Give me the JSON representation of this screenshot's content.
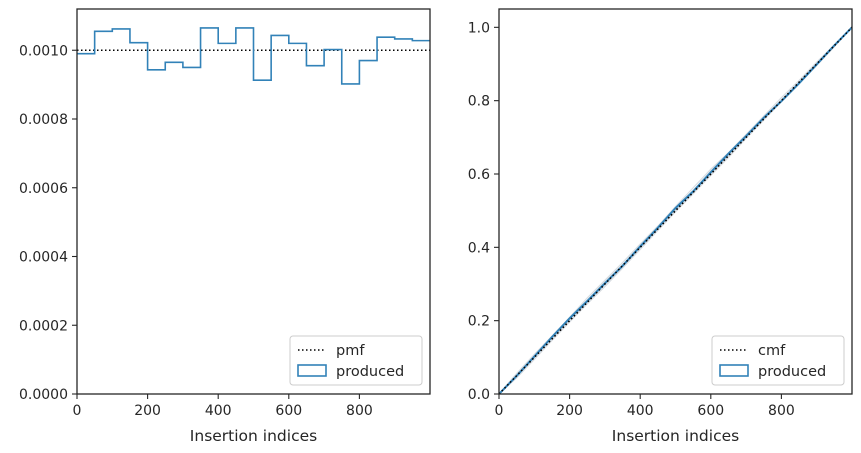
{
  "chart_data": [
    {
      "type": "histogram-step",
      "xlabel": "Insertion indices",
      "ylabel": "",
      "xlim": [
        0,
        1000
      ],
      "ylim": [
        0,
        0.00112
      ],
      "xticks": [
        0,
        200,
        400,
        600,
        800
      ],
      "yticks": [
        0.0,
        0.0002,
        0.0004,
        0.0006,
        0.0008,
        0.001
      ],
      "xtick_labels": [
        "0",
        "200",
        "400",
        "600",
        "800"
      ],
      "ytick_labels": [
        "0.0000",
        "0.0002",
        "0.0004",
        "0.0006",
        "0.0008",
        "0.0010"
      ],
      "grid": false,
      "legend_position": "bottom-right",
      "legend": [
        {
          "label": "pmf",
          "style": "dotted-line",
          "color": "#000000"
        },
        {
          "label": "produced",
          "style": "box",
          "color": "#3282b8"
        }
      ],
      "series": [
        {
          "name": "pmf",
          "kind": "hline",
          "y": 0.001,
          "color": "#000000"
        },
        {
          "name": "produced",
          "kind": "step",
          "color": "#3282b8",
          "bin_edges": [
            0,
            50,
            100,
            150,
            200,
            250,
            300,
            350,
            400,
            450,
            500,
            550,
            600,
            650,
            700,
            750,
            800,
            850,
            900,
            950,
            1000
          ],
          "values": [
            0.00099,
            0.001055,
            0.001062,
            0.001022,
            0.000943,
            0.000965,
            0.00095,
            0.001065,
            0.00102,
            0.001065,
            0.000913,
            0.001043,
            0.00102,
            0.000955,
            0.001002,
            0.000902,
            0.00097,
            0.001038,
            0.001033,
            0.001028
          ]
        }
      ]
    },
    {
      "type": "line",
      "xlabel": "Insertion indices",
      "ylabel": "",
      "xlim": [
        0,
        1000
      ],
      "ylim": [
        0,
        1.05
      ],
      "xticks": [
        0,
        200,
        400,
        600,
        800
      ],
      "yticks": [
        0.0,
        0.2,
        0.4,
        0.6,
        0.8,
        1.0
      ],
      "xtick_labels": [
        "0",
        "200",
        "400",
        "600",
        "800"
      ],
      "ytick_labels": [
        "0.0",
        "0.2",
        "0.4",
        "0.6",
        "0.8",
        "1.0"
      ],
      "grid": false,
      "legend_position": "bottom-right",
      "legend": [
        {
          "label": "cmf",
          "style": "dotted-line",
          "color": "#000000"
        },
        {
          "label": "produced",
          "style": "box",
          "color": "#3282b8"
        }
      ],
      "series": [
        {
          "name": "cmf",
          "kind": "line",
          "x": [
            0,
            1000
          ],
          "y": [
            0,
            1
          ],
          "color": "#000000"
        },
        {
          "name": "produced",
          "kind": "line",
          "color": "#3282b8",
          "x": [
            0,
            50,
            100,
            150,
            200,
            250,
            300,
            350,
            400,
            450,
            500,
            550,
            600,
            650,
            700,
            750,
            800,
            850,
            900,
            950,
            1000
          ],
          "y": [
            0,
            0.0495,
            0.1023,
            0.1554,
            0.2065,
            0.2536,
            0.3019,
            0.3494,
            0.4026,
            0.4536,
            0.5069,
            0.5525,
            0.6047,
            0.6557,
            0.7034,
            0.7535,
            0.7986,
            0.8471,
            0.899,
            0.9507,
            1.0
          ]
        }
      ],
      "envelope": {
        "color": "#d8dde2",
        "curves": [
          [
            0,
            0.056,
            0.108,
            0.158,
            0.209,
            0.262,
            0.31,
            0.358,
            0.409,
            0.458,
            0.511,
            0.562,
            0.613,
            0.658,
            0.708,
            0.758,
            0.808,
            0.855,
            0.905,
            0.952,
            1.0
          ],
          [
            0,
            0.044,
            0.094,
            0.146,
            0.196,
            0.246,
            0.293,
            0.343,
            0.394,
            0.446,
            0.497,
            0.546,
            0.596,
            0.645,
            0.697,
            0.747,
            0.797,
            0.846,
            0.896,
            0.947,
            1.0
          ],
          [
            0,
            0.052,
            0.101,
            0.152,
            0.203,
            0.255,
            0.306,
            0.352,
            0.4,
            0.452,
            0.505,
            0.554,
            0.608,
            0.656,
            0.704,
            0.751,
            0.802,
            0.851,
            0.9,
            0.951,
            1.0
          ],
          [
            0,
            0.047,
            0.097,
            0.148,
            0.199,
            0.25,
            0.298,
            0.347,
            0.398,
            0.448,
            0.5,
            0.55,
            0.599,
            0.649,
            0.699,
            0.749,
            0.799,
            0.849,
            0.899,
            0.949,
            1.0
          ]
        ]
      }
    }
  ]
}
